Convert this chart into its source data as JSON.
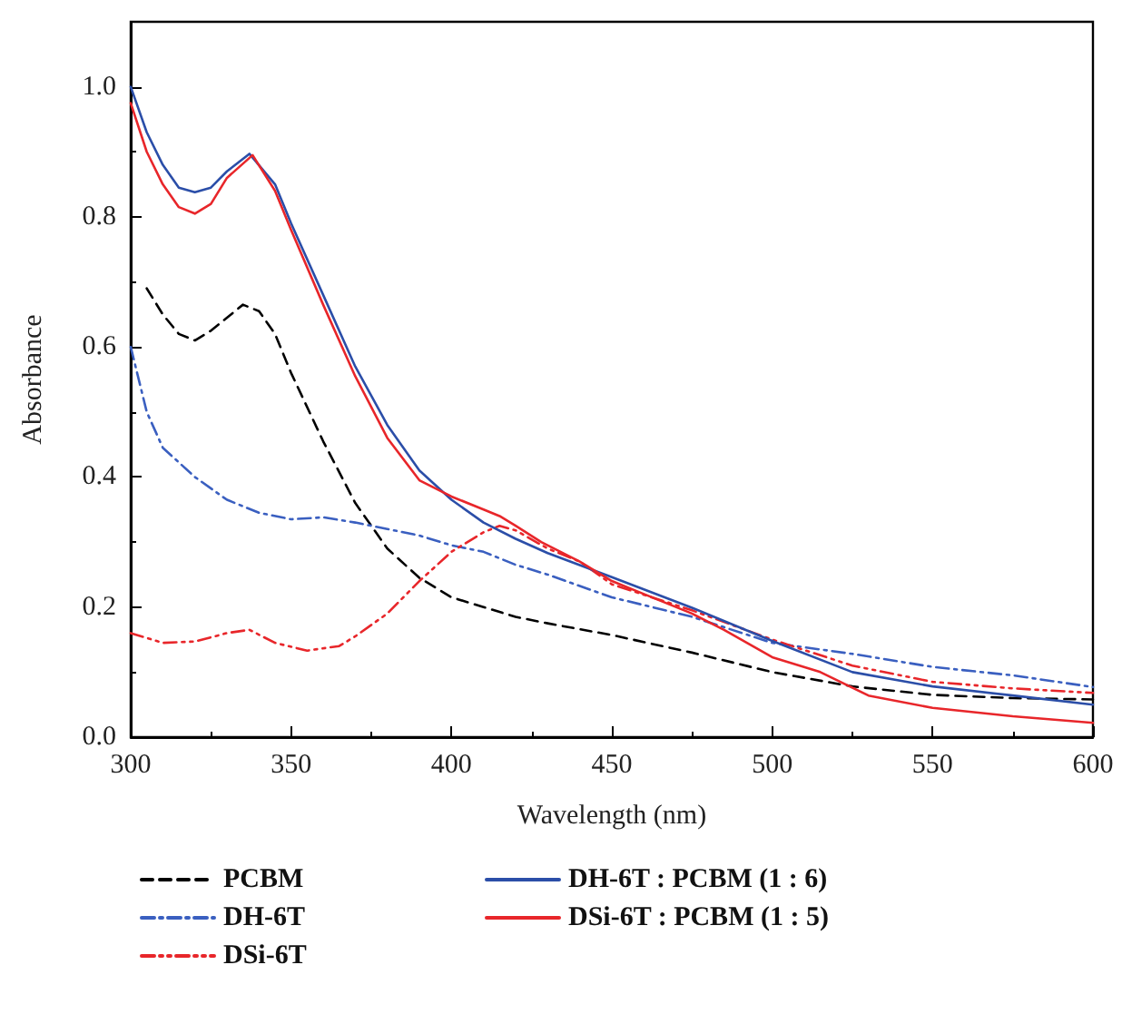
{
  "chart_data": {
    "type": "line",
    "xlabel": "Wavelength (nm)",
    "ylabel": "Absorbance",
    "xlim": [
      300,
      600
    ],
    "xticks": [
      300,
      350,
      400,
      450,
      500,
      550,
      600
    ],
    "ylim": [
      0,
      1.1
    ],
    "yticks": [
      {
        "value": 0,
        "label": "0.0"
      },
      0.2,
      0.4,
      0.6,
      0.8,
      {
        "value": 1,
        "label": "1.0"
      }
    ],
    "grid": false,
    "legend": "bottom",
    "marker": "none",
    "series": [
      {
        "name": "PCBM",
        "color": "#000000",
        "line_style": "dashed",
        "x": [
          305,
          310,
          315,
          320,
          325,
          330,
          335,
          340,
          345,
          350,
          360,
          370,
          380,
          390,
          400,
          410,
          420,
          430,
          450,
          475,
          500,
          525,
          550,
          575,
          600
        ],
        "values": [
          0.69,
          0.65,
          0.62,
          0.61,
          0.625,
          0.645,
          0.665,
          0.655,
          0.62,
          0.56,
          0.455,
          0.36,
          0.29,
          0.245,
          0.215,
          0.2,
          0.185,
          0.175,
          0.157,
          0.13,
          0.1,
          0.078,
          0.065,
          0.06,
          0.058
        ]
      },
      {
        "name": "DH-6T",
        "color": "#3a5fc0",
        "line_style": "dashdot",
        "x": [
          300,
          305,
          310,
          320,
          330,
          340,
          350,
          360,
          370,
          380,
          390,
          400,
          410,
          420,
          430,
          450,
          475,
          500,
          525,
          550,
          575,
          600
        ],
        "values": [
          0.6,
          0.5,
          0.445,
          0.4,
          0.365,
          0.345,
          0.335,
          0.338,
          0.33,
          0.32,
          0.31,
          0.295,
          0.285,
          0.265,
          0.25,
          0.215,
          0.185,
          0.145,
          0.128,
          0.108,
          0.095,
          0.077
        ]
      },
      {
        "name": "DSi-6T",
        "color": "#e8262a",
        "line_style": "dashdotdot",
        "x": [
          300,
          310,
          320,
          330,
          337,
          345,
          355,
          365,
          370,
          380,
          390,
          400,
          410,
          415,
          420,
          430,
          440,
          450,
          475,
          500,
          525,
          550,
          575,
          600
        ],
        "values": [
          0.16,
          0.145,
          0.147,
          0.16,
          0.165,
          0.145,
          0.133,
          0.14,
          0.155,
          0.19,
          0.24,
          0.285,
          0.315,
          0.325,
          0.318,
          0.29,
          0.27,
          0.235,
          0.195,
          0.15,
          0.11,
          0.085,
          0.075,
          0.068
        ]
      },
      {
        "name": "DH-6T : PCBM (1 : 6)",
        "color": "#2b4ea8",
        "line_style": "solid",
        "x": [
          300,
          305,
          310,
          315,
          320,
          325,
          330,
          337,
          345,
          350,
          360,
          370,
          380,
          390,
          400,
          410,
          420,
          430,
          450,
          475,
          500,
          525,
          550,
          575,
          600
        ],
        "values": [
          1.0,
          0.93,
          0.88,
          0.845,
          0.838,
          0.845,
          0.87,
          0.897,
          0.85,
          0.79,
          0.68,
          0.57,
          0.48,
          0.41,
          0.365,
          0.33,
          0.305,
          0.283,
          0.246,
          0.199,
          0.148,
          0.1,
          0.078,
          0.064,
          0.05
        ]
      },
      {
        "name": "DSi-6T : PCBM (1 : 5)",
        "color": "#e8262a",
        "line_style": "solid",
        "x": [
          300,
          305,
          310,
          315,
          320,
          325,
          330,
          338,
          345,
          350,
          360,
          370,
          380,
          390,
          400,
          410,
          415,
          420,
          428,
          440,
          450,
          460,
          475,
          485,
          500,
          515,
          530,
          550,
          575,
          600
        ],
        "values": [
          0.975,
          0.9,
          0.85,
          0.815,
          0.805,
          0.82,
          0.86,
          0.895,
          0.84,
          0.78,
          0.665,
          0.555,
          0.46,
          0.395,
          0.37,
          0.35,
          0.34,
          0.325,
          0.3,
          0.27,
          0.24,
          0.22,
          0.19,
          0.165,
          0.123,
          0.1,
          0.064,
          0.045,
          0.032,
          0.022
        ]
      }
    ]
  }
}
